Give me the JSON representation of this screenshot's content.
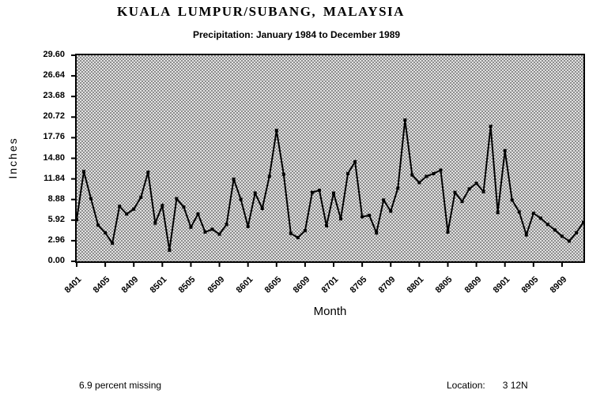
{
  "footer": {
    "missing_note": "6.9 percent missing",
    "location_label": "Location:",
    "location_value": "3 12N"
  },
  "chart_data": {
    "type": "line",
    "title": "KUALA LUMPUR/SUBANG, MALAYSIA",
    "subtitle": "Precipitation: January 1984 to December 1989",
    "xlabel": "Month",
    "ylabel": "Inches",
    "ylim": [
      0,
      29.6
    ],
    "grid": false,
    "legend": "none",
    "line_color": "#000000",
    "marker": "square",
    "plot_background": "dithered-gray",
    "y_ticks": [
      "29.60",
      "26.64",
      "23.68",
      "20.72",
      "17.76",
      "14.80",
      "11.84",
      "8.88",
      "5.92",
      "2.96",
      "0.00"
    ],
    "x_tick_labels": [
      "8401",
      "8405",
      "8409",
      "8501",
      "8505",
      "8509",
      "8601",
      "8605",
      "8609",
      "8701",
      "8705",
      "8709",
      "8801",
      "8805",
      "8809",
      "8901",
      "8905",
      "8909"
    ],
    "x_tick_step": 4,
    "categories": [
      "8401",
      "8402",
      "8403",
      "8404",
      "8405",
      "8406",
      "8407",
      "8408",
      "8409",
      "8410",
      "8411",
      "8412",
      "8501",
      "8502",
      "8503",
      "8504",
      "8505",
      "8506",
      "8507",
      "8508",
      "8509",
      "8510",
      "8511",
      "8512",
      "8601",
      "8602",
      "8603",
      "8604",
      "8605",
      "8606",
      "8607",
      "8608",
      "8609",
      "8610",
      "8611",
      "8612",
      "8701",
      "8702",
      "8703",
      "8704",
      "8705",
      "8706",
      "8707",
      "8708",
      "8709",
      "8710",
      "8711",
      "8712",
      "8801",
      "8802",
      "8803",
      "8804",
      "8805",
      "8806",
      "8807",
      "8808",
      "8809",
      "8810",
      "8811",
      "8812",
      "8901",
      "8902",
      "8903",
      "8904",
      "8905",
      "8906",
      "8907",
      "8908",
      "8909",
      "8910",
      "8911",
      "8912"
    ],
    "values": [
      6.0,
      12.9,
      9.0,
      5.2,
      4.1,
      2.6,
      7.9,
      6.8,
      7.5,
      9.2,
      12.8,
      5.5,
      8.0,
      1.6,
      9.0,
      7.8,
      4.9,
      6.8,
      4.2,
      4.6,
      3.9,
      5.3,
      11.8,
      8.9,
      5.0,
      9.8,
      7.6,
      12.2,
      18.8,
      12.5,
      4.0,
      3.4,
      4.4,
      9.9,
      10.2,
      5.1,
      9.8,
      6.1,
      12.6,
      14.3,
      6.4,
      6.6,
      4.1,
      8.8,
      7.2,
      10.5,
      20.3,
      12.4,
      11.3,
      12.2,
      12.6,
      13.1,
      4.2,
      9.9,
      8.6,
      10.4,
      11.2,
      10.0,
      19.4,
      7.0,
      15.9,
      8.8,
      7.1,
      3.8,
      6.9,
      6.2,
      5.3,
      4.5,
      3.6,
      2.9,
      4.1,
      5.6
    ]
  }
}
